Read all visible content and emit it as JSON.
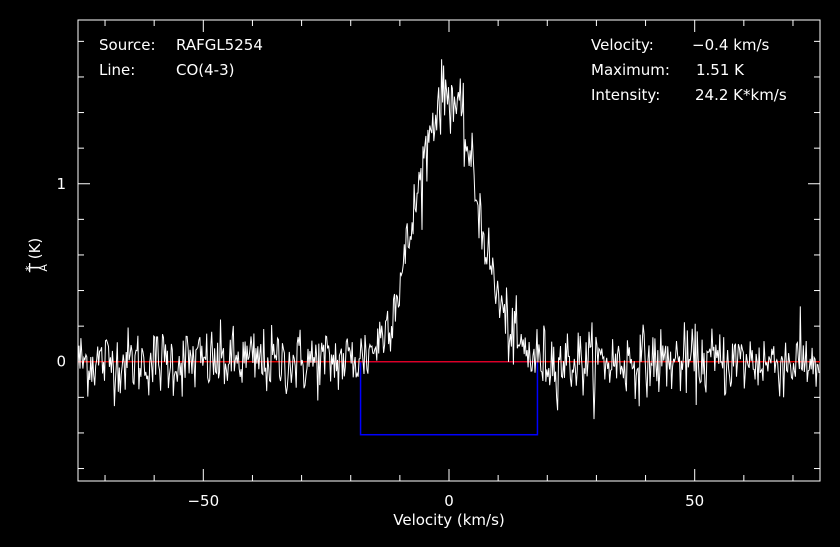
{
  "info": {
    "source_label": "Source:",
    "source_value": "RAFGL5254",
    "line_label": "Line:",
    "line_value": "CO(4-3)",
    "velocity_label": "Velocity:",
    "velocity_value": "−0.4 km/s",
    "maximum_label": "Maximum:",
    "maximum_value": "1.51 K",
    "intensity_label": "Intensity:",
    "intensity_value": "24.2 K*km/s"
  },
  "chart_data": {
    "type": "line",
    "xlabel": "Velocity (km/s)",
    "ylabel_main": "T",
    "ylabel_sup": "*",
    "ylabel_sub": "A",
    "ylabel_unit": " (K)",
    "xlim": [
      -75.5,
      75.5
    ],
    "ylim": [
      -0.67,
      1.92
    ],
    "x_ticks": [
      -50,
      0,
      50
    ],
    "x_tick_labels": [
      "−50",
      "0",
      "50"
    ],
    "y_ticks": [
      0,
      1
    ],
    "y_tick_labels": [
      "0",
      "1"
    ],
    "baseline": 0,
    "baseline_color": "#ff0000",
    "line_color": "#ffffff",
    "window_color": "#0000ff",
    "window": {
      "x": [
        -18,
        18
      ],
      "y": [
        -0.41,
        0
      ]
    },
    "line_center": -0.4,
    "line_peak": 1.51,
    "line_fwhm": 14.5,
    "noise_rms": 0.095,
    "channel_width": 0.2
  }
}
